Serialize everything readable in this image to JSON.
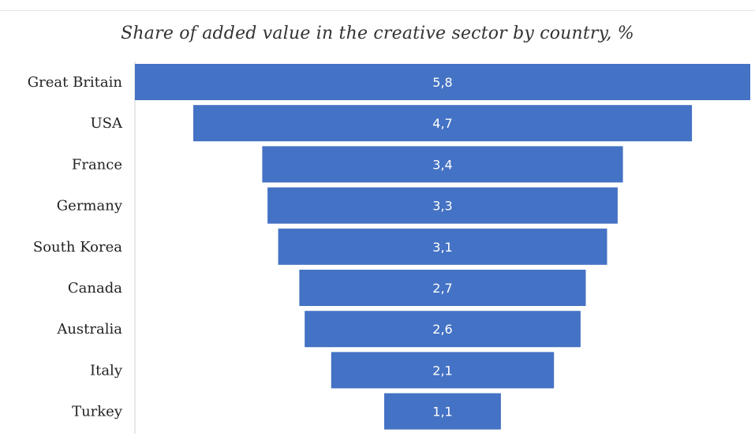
{
  "chart_data": {
    "type": "bar",
    "subtype": "funnel",
    "title": "Share of added value in the creative sector by country, %",
    "categories": [
      "Great Britain",
      "USA",
      "France",
      "Germany",
      "South Korea",
      "Canada",
      "Australia",
      "Italy",
      "Turkey"
    ],
    "values": [
      5.8,
      4.7,
      3.4,
      3.3,
      3.1,
      2.7,
      2.6,
      2.1,
      1.1
    ],
    "data_labels": [
      "5,8",
      "4,7",
      "3,4",
      "3,3",
      "3,1",
      "2,7",
      "2,6",
      "2,1",
      "1,1"
    ],
    "bar_color": "#4472C4",
    "grid": false,
    "legend": "none"
  }
}
